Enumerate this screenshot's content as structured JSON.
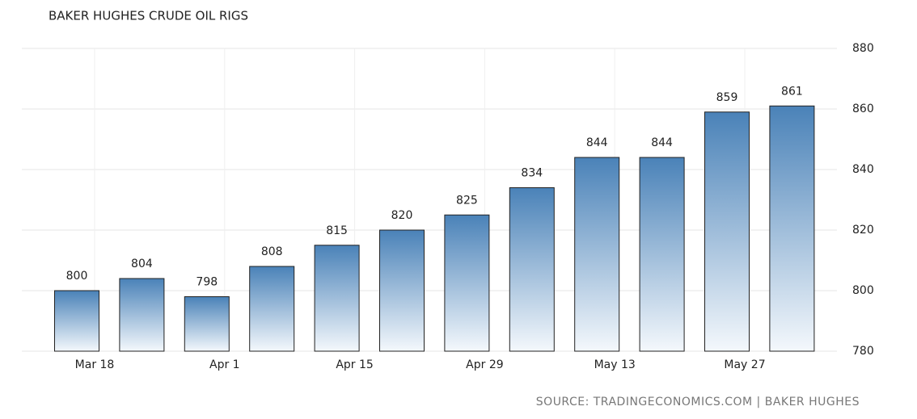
{
  "chart_data": {
    "type": "bar",
    "title": "BAKER HUGHES CRUDE OIL RIGS",
    "source": "SOURCE: TRADINGECONOMICS.COM | BAKER HUGHES",
    "categories": [
      "Mar 18",
      null,
      "Apr 1",
      null,
      "Apr 15",
      null,
      "Apr 29",
      null,
      "May 13",
      null,
      "May 27",
      null
    ],
    "values": [
      800,
      804,
      798,
      808,
      815,
      820,
      825,
      834,
      844,
      844,
      859,
      861
    ],
    "color": "#4a82b8",
    "ylim": [
      780,
      880
    ],
    "yticks": [
      780,
      800,
      820,
      840,
      860,
      880
    ],
    "grid": true
  }
}
